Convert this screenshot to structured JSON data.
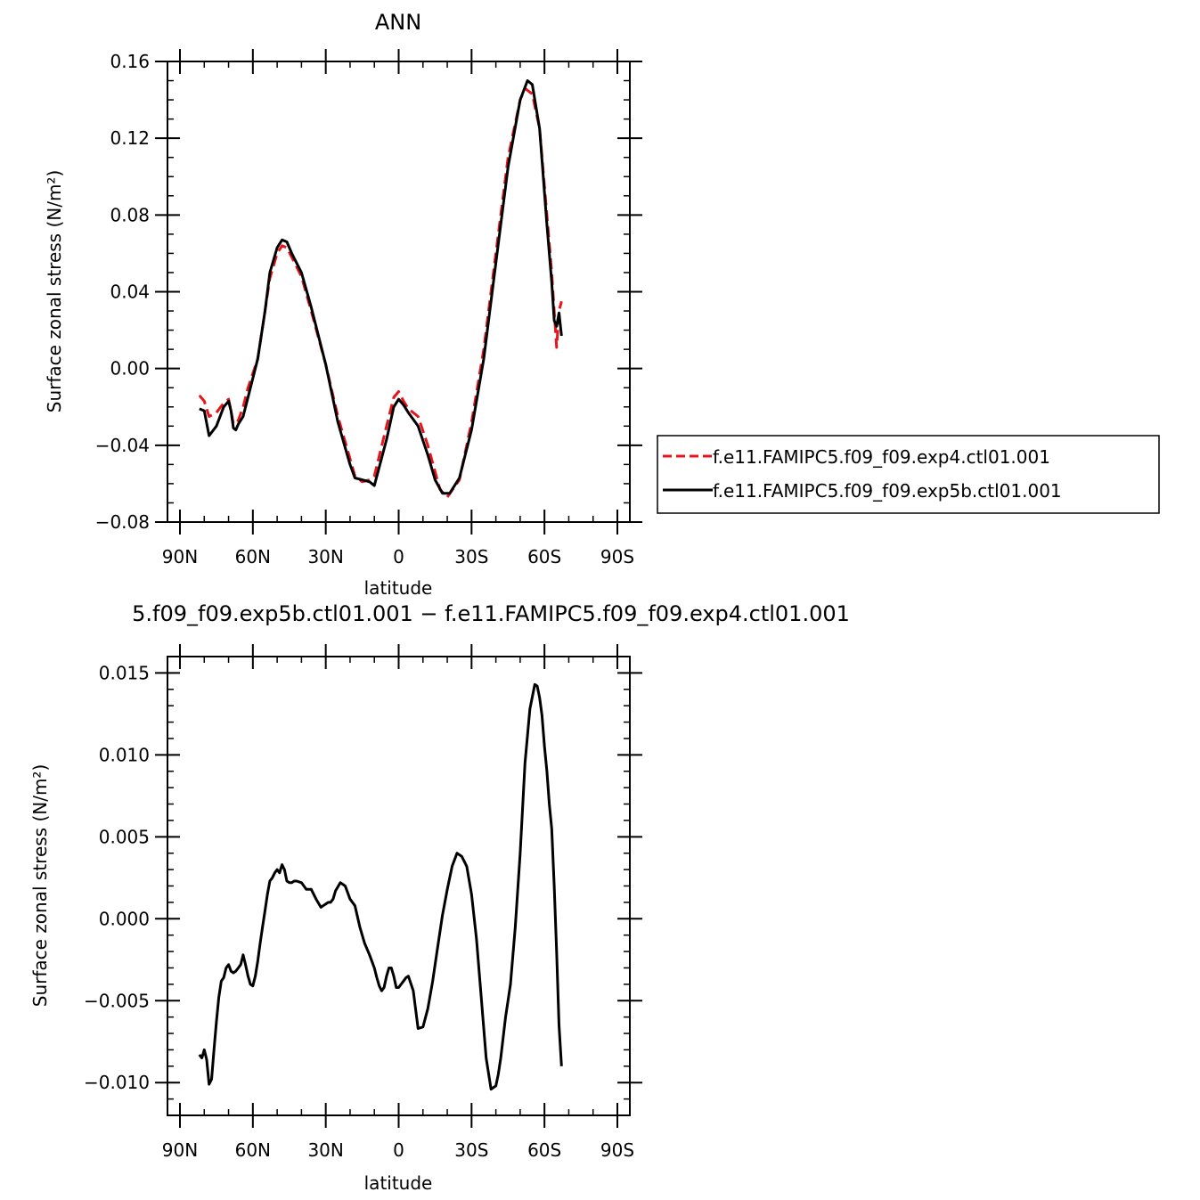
{
  "charts": {
    "top": {
      "title": "ANN",
      "ylabel": "Surface zonal stress (N/m²)",
      "xlabel": "latitude",
      "yticklabels": [
        "0.16",
        "0.12",
        "0.08",
        "0.04",
        "0.00",
        "−0.04",
        "−0.08"
      ],
      "xticklabels": [
        "90N",
        "60N",
        "30N",
        "0",
        "30S",
        "60S",
        "90S"
      ]
    },
    "bottom": {
      "title": "5.f09_f09.exp5b.ctl01.001 − f.e11.FAMIPC5.f09_f09.exp4.ctl01.001",
      "ylabel": "Surface zonal stress (N/m²)",
      "xlabel": "latitude",
      "yticklabels": [
        "0.015",
        "0.010",
        "0.005",
        "0.000",
        "−0.005",
        "−0.010"
      ],
      "xticklabels": [
        "90N",
        "60N",
        "30N",
        "0",
        "30S",
        "60S",
        "90S"
      ]
    }
  },
  "legend": {
    "items": [
      {
        "label": "f.e11.FAMIPC5.f09_f09.exp4.ctl01.001",
        "color": "#e8141b",
        "style": "dashed"
      },
      {
        "label": "f.e11.FAMIPC5.f09_f09.exp5b.ctl01.001",
        "color": "#000000",
        "style": "solid"
      }
    ]
  },
  "chart_data": [
    {
      "type": "line",
      "title": "ANN",
      "xlabel": "latitude",
      "ylabel": "Surface zonal stress (N/m²)",
      "xlim": [
        90,
        -90
      ],
      "ylim": [
        -0.08,
        0.16
      ],
      "xticks": [
        90,
        60,
        30,
        0,
        -30,
        -60,
        -90
      ],
      "yticks": [
        0.16,
        0.12,
        0.08,
        0.04,
        0.0,
        -0.04,
        -0.08
      ],
      "legend_position": "right",
      "series": [
        {
          "name": "f.e11.FAMIPC5.f09_f09.exp4.ctl01.001",
          "color": "#e8141b",
          "dash": "dashed",
          "x": [
            82,
            80,
            78,
            75,
            72,
            70,
            69,
            68,
            66,
            64,
            62,
            58,
            55,
            53,
            50,
            48,
            46,
            44,
            40,
            36,
            30,
            25,
            20,
            18,
            15,
            12,
            10,
            5,
            2,
            0,
            -2,
            -4,
            -8,
            -12,
            -17,
            -20,
            -25,
            -30,
            -35,
            -40,
            -45,
            -50,
            -52,
            -55,
            -58,
            -61,
            -63,
            -64,
            -65,
            -66,
            -67
          ],
          "y": [
            -0.014,
            -0.017,
            -0.025,
            -0.023,
            -0.018,
            -0.016,
            -0.022,
            -0.029,
            -0.027,
            -0.02,
            -0.01,
            0.005,
            0.03,
            0.047,
            0.06,
            0.064,
            0.063,
            0.058,
            0.048,
            0.03,
            0.002,
            -0.025,
            -0.047,
            -0.056,
            -0.059,
            -0.058,
            -0.056,
            -0.03,
            -0.015,
            -0.012,
            -0.017,
            -0.021,
            -0.025,
            -0.04,
            -0.063,
            -0.067,
            -0.058,
            -0.028,
            0.01,
            0.06,
            0.11,
            0.14,
            0.146,
            0.143,
            0.125,
            0.08,
            0.05,
            0.03,
            0.011,
            0.03,
            0.035
          ]
        },
        {
          "name": "f.e11.FAMIPC5.f09_f09.exp5b.ctl01.001",
          "color": "#000000",
          "dash": "solid",
          "x": [
            82,
            80,
            78,
            75,
            72,
            70,
            69,
            68,
            67,
            66,
            64,
            62,
            58,
            55,
            53,
            50,
            48,
            46,
            44,
            40,
            36,
            30,
            25,
            20,
            18,
            15,
            12,
            10,
            5,
            2,
            0,
            -2,
            -4,
            -8,
            -12,
            -15,
            -18,
            -21,
            -25,
            -30,
            -35,
            -40,
            -45,
            -50,
            -53,
            -55,
            -58,
            -61,
            -63,
            -64,
            -65,
            -66,
            -67
          ],
          "y": [
            -0.021,
            -0.022,
            -0.035,
            -0.03,
            -0.02,
            -0.017,
            -0.022,
            -0.031,
            -0.032,
            -0.029,
            -0.025,
            -0.015,
            0.005,
            0.03,
            0.05,
            0.063,
            0.067,
            0.066,
            0.06,
            0.05,
            0.032,
            0.002,
            -0.028,
            -0.05,
            -0.057,
            -0.058,
            -0.059,
            -0.061,
            -0.037,
            -0.02,
            -0.016,
            -0.019,
            -0.023,
            -0.03,
            -0.045,
            -0.058,
            -0.065,
            -0.065,
            -0.057,
            -0.032,
            0.005,
            0.055,
            0.105,
            0.14,
            0.15,
            0.148,
            0.125,
            0.075,
            0.045,
            0.025,
            0.022,
            0.029,
            0.017
          ]
        }
      ]
    },
    {
      "type": "line",
      "title": "5.f09_f09.exp5b.ctl01.001 − f.e11.FAMIPC5.f09_f09.exp4.ctl01.001",
      "xlabel": "latitude",
      "ylabel": "Surface zonal stress (N/m²)",
      "xlim": [
        90,
        -90
      ],
      "ylim": [
        -0.012,
        0.016
      ],
      "xticks": [
        90,
        60,
        30,
        0,
        -30,
        -60,
        -90
      ],
      "yticks": [
        0.015,
        0.01,
        0.005,
        0.0,
        -0.005,
        -0.01
      ],
      "series": [
        {
          "color": "#000000",
          "dash": "solid",
          "x": [
            82,
            81,
            80,
            79,
            78,
            77,
            76,
            75,
            74,
            73,
            72,
            71,
            70,
            69,
            68,
            67,
            66,
            65,
            64,
            63,
            62,
            61,
            60,
            59,
            58,
            57,
            56,
            55,
            54,
            53,
            52,
            51,
            50,
            49,
            48,
            47,
            46,
            45,
            44,
            43,
            42,
            40,
            38,
            36,
            34,
            32,
            30,
            29,
            28,
            27,
            26,
            24,
            22,
            20,
            18,
            16,
            14,
            12,
            10,
            9,
            8,
            7,
            6,
            5,
            4,
            3,
            2,
            1,
            0,
            -1,
            -2,
            -3,
            -4,
            -6,
            -8,
            -10,
            -12,
            -14,
            -16,
            -18,
            -20,
            -22,
            -24,
            -26,
            -28,
            -30,
            -32,
            -34,
            -36,
            -38,
            -40,
            -41,
            -42,
            -44,
            -46,
            -48,
            -50,
            -52,
            -54,
            -56,
            -57,
            -58,
            -59,
            -60,
            -61,
            -62,
            -63,
            -64,
            -65,
            -66,
            -67
          ],
          "y": [
            -0.0083,
            -0.0085,
            -0.008,
            -0.0086,
            -0.0101,
            -0.0098,
            -0.008,
            -0.0063,
            -0.0048,
            -0.0038,
            -0.0036,
            -0.003,
            -0.0028,
            -0.0032,
            -0.0033,
            -0.0032,
            -0.003,
            -0.0028,
            -0.0022,
            -0.0028,
            -0.0035,
            -0.004,
            -0.0041,
            -0.0035,
            -0.0026,
            -0.0015,
            -0.0005,
            0.0005,
            0.0015,
            0.0023,
            0.0025,
            0.0028,
            0.003,
            0.0028,
            0.0033,
            0.003,
            0.0023,
            0.0022,
            0.0022,
            0.0023,
            0.0023,
            0.0022,
            0.0018,
            0.0018,
            0.0012,
            0.0007,
            0.0009,
            0.001,
            0.001,
            0.0012,
            0.0017,
            0.0022,
            0.002,
            0.0012,
            0.0008,
            -0.0005,
            -0.0015,
            -0.0022,
            -0.003,
            -0.0036,
            -0.0041,
            -0.0044,
            -0.0042,
            -0.0035,
            -0.003,
            -0.003,
            -0.0035,
            -0.0042,
            -0.0042,
            -0.004,
            -0.0038,
            -0.0036,
            -0.0035,
            -0.0044,
            -0.0067,
            -0.0066,
            -0.0055,
            -0.0038,
            -0.0018,
            0.0002,
            0.0018,
            0.0032,
            0.004,
            0.0038,
            0.0032,
            0.0015,
            -0.0012,
            -0.0048,
            -0.0085,
            -0.0104,
            -0.0102,
            -0.0095,
            -0.0085,
            -0.006,
            -0.004,
            -0.0005,
            0.004,
            0.0095,
            0.0128,
            0.0143,
            0.0142,
            0.0135,
            0.0124,
            0.0105,
            0.009,
            0.007,
            0.0055,
            0.002,
            -0.002,
            -0.0065,
            -0.009
          ]
        }
      ]
    }
  ]
}
